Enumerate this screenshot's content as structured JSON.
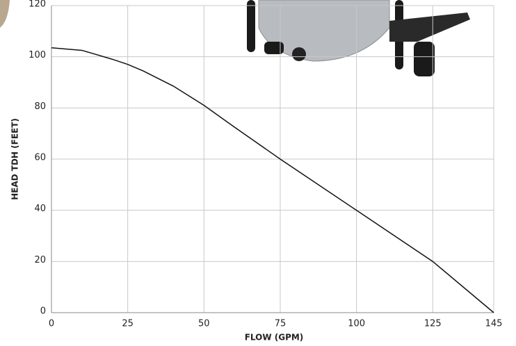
{
  "chart_data": {
    "type": "line",
    "x_label": "FLOW (GPM)",
    "y_label": "HEAD TDH (FEET)",
    "x": [
      0,
      10,
      20,
      25,
      30,
      40,
      50,
      60,
      75,
      100,
      125,
      145
    ],
    "series": [
      {
        "color": "#111111",
        "values": [
          103.5,
          102.5,
          99,
          97,
          94.5,
          88.5,
          81,
          72.5,
          60,
          40,
          20,
          0
        ]
      }
    ],
    "xlim": [
      0,
      145
    ],
    "xticks": [
      0,
      25,
      50,
      75,
      100,
      125,
      145
    ],
    "ylim": [
      0,
      120
    ],
    "yticks": [
      0,
      20,
      40,
      60,
      80,
      100,
      120
    ],
    "grid": true
  }
}
